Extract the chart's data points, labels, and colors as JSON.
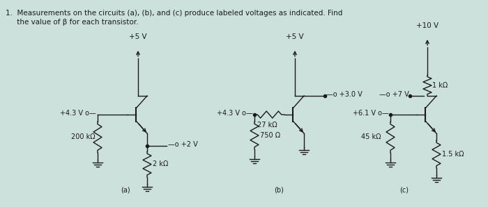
{
  "bg_color": "#cce0dc",
  "text_color": "#1a1a1a",
  "title_line1": "1.  Measurements on the circuits (a), (b), and (c) produce labeled voltages as indicated. Find",
  "title_line2": "     the value of β for each transistor.",
  "circuit_a": {
    "label": "(a)",
    "vcc": "+5 V",
    "v_base": "+4.3 V o—",
    "v_emitter": "+2 V",
    "r1": "200 kΩ",
    "r2": "2 kΩ"
  },
  "circuit_b": {
    "label": "(b)",
    "vcc": "+5 V",
    "v_base": "+4.3 V o—",
    "v_collector": "+3.0 V",
    "r1": "27 kΩ",
    "r2": "750 Ω"
  },
  "circuit_c": {
    "label": "(c)",
    "vcc": "+10 V",
    "v_base": "+6.1 V o—",
    "v_collector": "+7 V",
    "r1": "45 kΩ",
    "rc": "1 kΩ",
    "re": "1.5 kΩ"
  }
}
